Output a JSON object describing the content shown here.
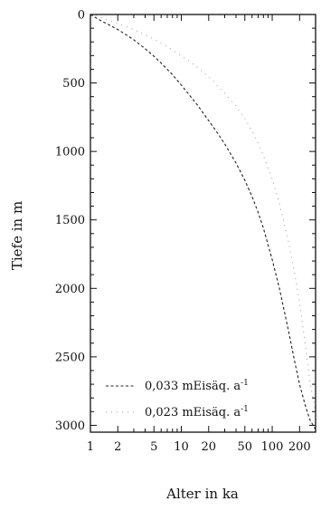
{
  "chart_data": {
    "type": "line",
    "xlabel": "Alter in ka",
    "ylabel": "Tiefe in m",
    "x_scale": "log",
    "xlim": [
      1,
      300
    ],
    "ylim": [
      0,
      3050
    ],
    "y_inverted": true,
    "x_ticks": [
      1,
      2,
      5,
      10,
      20,
      50,
      100,
      200
    ],
    "x_tick_labels": [
      "1",
      "2",
      "5",
      "10",
      "20",
      "50",
      "100",
      "200"
    ],
    "y_ticks": [
      0,
      500,
      1000,
      1500,
      2000,
      2500,
      3000
    ],
    "y_tick_labels": [
      "0",
      "500",
      "1000",
      "1500",
      "2000",
      "2500",
      "3000"
    ],
    "legend_position": "bottom",
    "series": [
      {
        "name": "0,033 mEisäq. a",
        "name_superscript": "-1",
        "style": "dashed",
        "color": "#222222",
        "points": [
          [
            1.0,
            0
          ],
          [
            1.3,
            45
          ],
          [
            1.6,
            75
          ],
          [
            2.0,
            110
          ],
          [
            2.5,
            150
          ],
          [
            3.0,
            185
          ],
          [
            4.0,
            250
          ],
          [
            5.0,
            305
          ],
          [
            6.0,
            355
          ],
          [
            7.0,
            400
          ],
          [
            8.0,
            440
          ],
          [
            10.0,
            515
          ],
          [
            12.0,
            580
          ],
          [
            15.0,
            660
          ],
          [
            20.0,
            775
          ],
          [
            25.0,
            865
          ],
          [
            30.0,
            945
          ],
          [
            40.0,
            1085
          ],
          [
            50.0,
            1210
          ],
          [
            60.0,
            1330
          ],
          [
            70.0,
            1445
          ],
          [
            80.0,
            1560
          ],
          [
            100.0,
            1790
          ],
          [
            120.0,
            2000
          ],
          [
            150.0,
            2300
          ],
          [
            180.0,
            2560
          ],
          [
            200.0,
            2700
          ],
          [
            230.0,
            2850
          ],
          [
            260.0,
            2960
          ],
          [
            300.0,
            3030
          ]
        ]
      },
      {
        "name": "0,023 mEisäq. a",
        "name_superscript": "-1",
        "style": "dotted",
        "color": "#9a9a9a",
        "points": [
          [
            1.0,
            0
          ],
          [
            1.5,
            35
          ],
          [
            2.0,
            65
          ],
          [
            3.0,
            110
          ],
          [
            4.0,
            150
          ],
          [
            5.0,
            180
          ],
          [
            7.0,
            235
          ],
          [
            10.0,
            300
          ],
          [
            15.0,
            385
          ],
          [
            20.0,
            455
          ],
          [
            25.0,
            520
          ],
          [
            30.0,
            575
          ],
          [
            40.0,
            670
          ],
          [
            50.0,
            760
          ],
          [
            60.0,
            850
          ],
          [
            70.0,
            940
          ],
          [
            80.0,
            1030
          ],
          [
            100.0,
            1200
          ],
          [
            120.0,
            1380
          ],
          [
            150.0,
            1650
          ],
          [
            180.0,
            1920
          ],
          [
            200.0,
            2100
          ],
          [
            230.0,
            2400
          ],
          [
            260.0,
            2680
          ],
          [
            300.0,
            2900
          ]
        ]
      }
    ]
  }
}
